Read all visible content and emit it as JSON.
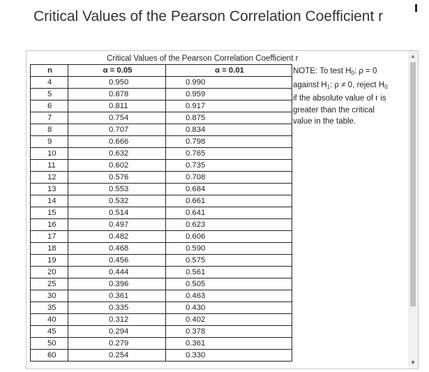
{
  "page": {
    "title": "Critical Values of the Pearson Correlation Coefficient r"
  },
  "table": {
    "caption": "Critical Values of the Pearson Correlation Coefficient r",
    "headers": {
      "n": "n",
      "a05": "α = 0.05",
      "a01": "α = 0.01"
    },
    "rows": [
      [
        "4",
        "0.950",
        "0.990"
      ],
      [
        "5",
        "0.878",
        "0.959"
      ],
      [
        "6",
        "0.811",
        "0.917"
      ],
      [
        "7",
        "0.754",
        "0.875"
      ],
      [
        "8",
        "0.707",
        "0.834"
      ],
      [
        "9",
        "0.666",
        "0.798"
      ],
      [
        "10",
        "0.632",
        "0.765"
      ],
      [
        "11",
        "0.602",
        "0.735"
      ],
      [
        "12",
        "0.576",
        "0.708"
      ],
      [
        "13",
        "0.553",
        "0.684"
      ],
      [
        "14",
        "0.532",
        "0.661"
      ],
      [
        "15",
        "0.514",
        "0.641"
      ],
      [
        "16",
        "0.497",
        "0.623"
      ],
      [
        "17",
        "0.482",
        "0.606"
      ],
      [
        "18",
        "0.468",
        "0.590"
      ],
      [
        "19",
        "0.456",
        "0.575"
      ],
      [
        "20",
        "0.444",
        "0.561"
      ],
      [
        "25",
        "0.396",
        "0.505"
      ],
      [
        "30",
        "0.361",
        "0.463"
      ],
      [
        "35",
        "0.335",
        "0.430"
      ],
      [
        "40",
        "0.312",
        "0.402"
      ],
      [
        "45",
        "0.294",
        "0.378"
      ],
      [
        "50",
        "0.279",
        "0.361"
      ],
      [
        "60",
        "0.254",
        "0.330"
      ]
    ]
  },
  "note": {
    "line1_prefix": "NOTE: To test H",
    "line1_sub": "0",
    "line1_suffix": ": ρ = 0",
    "line2_prefix": "against H",
    "line2_sub1": "1",
    "line2_mid": ": ρ ≠ 0, reject H",
    "line2_sub2": "0",
    "line3": "if the absolute value of r is",
    "line4": "greater than the critical",
    "line5": "value in the table."
  },
  "scrollbar": {
    "up_icon": "▲",
    "down_icon": "▼"
  }
}
